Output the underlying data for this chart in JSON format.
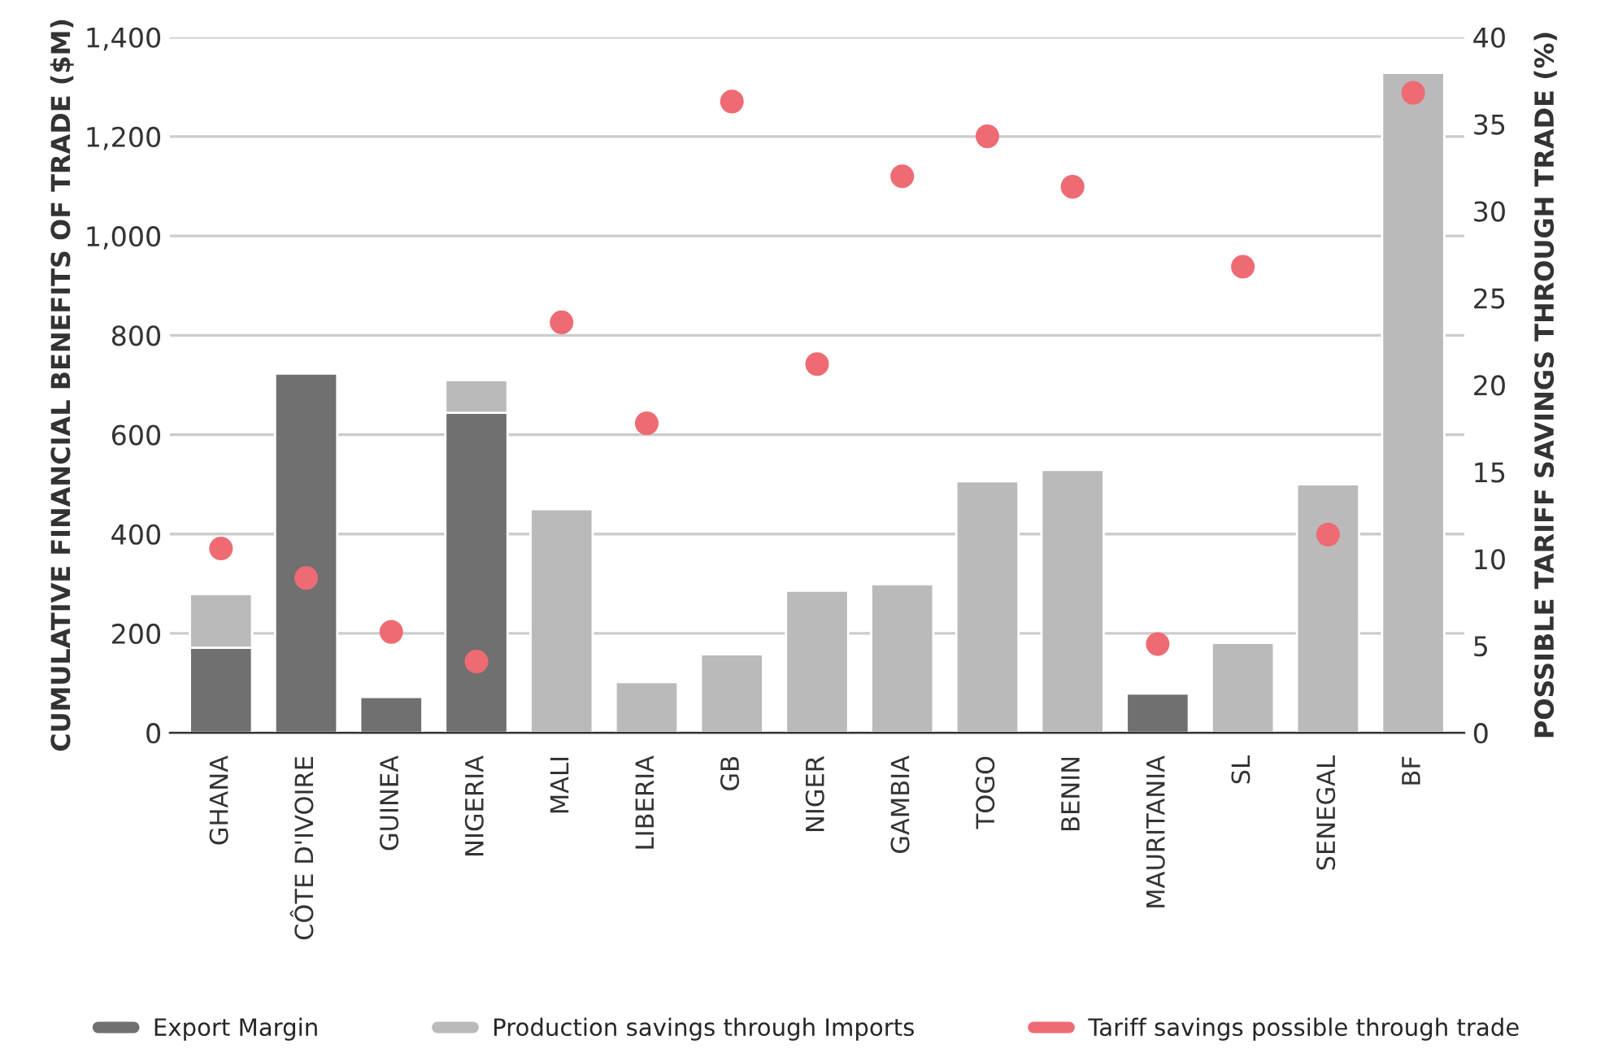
{
  "chart_data": {
    "type": "bar",
    "stacked": true,
    "ylabel": "CUMULATIVE FINANCIAL BENEFITS OF TRADE ($M)",
    "y2label": "POSSIBLE TARIFF SAVINGS THROUGH TRADE (%)",
    "categories": [
      "GHANA",
      "CÔTE D'IVOIRE",
      "GUINEA",
      "NIGERIA",
      "MALI",
      "LIBERIA",
      "GB",
      "NIGER",
      "GAMBIA",
      "TOGO",
      "BENIN",
      "MAURITANIA",
      "SL",
      "SENEGAL",
      "BF"
    ],
    "series": [
      {
        "name": "Export Margin",
        "color": "#707070",
        "values": [
          171,
          723,
          72,
          644,
          null,
          null,
          null,
          null,
          null,
          null,
          null,
          79,
          null,
          null,
          null
        ]
      },
      {
        "name": "Production savings through Imports",
        "color": "#bababa",
        "values": [
          108,
          null,
          null,
          66,
          450,
          102,
          158,
          286,
          299,
          506,
          529,
          null,
          181,
          500,
          1328
        ]
      },
      {
        "name": "Tariff savings possible through trade",
        "color": "#ee6b73",
        "type": "scatter",
        "axis": "y2",
        "marker": "circle",
        "values": [
          10.6,
          8.9,
          5.8,
          4.1,
          23.6,
          17.8,
          36.3,
          21.2,
          32.0,
          34.3,
          31.4,
          5.1,
          26.8,
          11.4,
          36.8
        ]
      }
    ],
    "ylim": [
      0,
      1400
    ],
    "yticks": [
      0,
      {
        "value": 200,
        "label": "200"
      },
      {
        "value": 400,
        "label": "400"
      },
      {
        "value": 600,
        "label": "600"
      },
      {
        "value": 800,
        "label": "800"
      },
      {
        "value": 1000,
        "label": "1,000"
      },
      {
        "value": 1200,
        "label": "1,200"
      },
      {
        "value": 1400,
        "label": "1,400"
      }
    ],
    "y2lim": [
      0,
      40
    ],
    "y2ticks": [
      0,
      5,
      10,
      15,
      20,
      25,
      30,
      35,
      40
    ],
    "grid": "y",
    "legend": "bottom"
  }
}
